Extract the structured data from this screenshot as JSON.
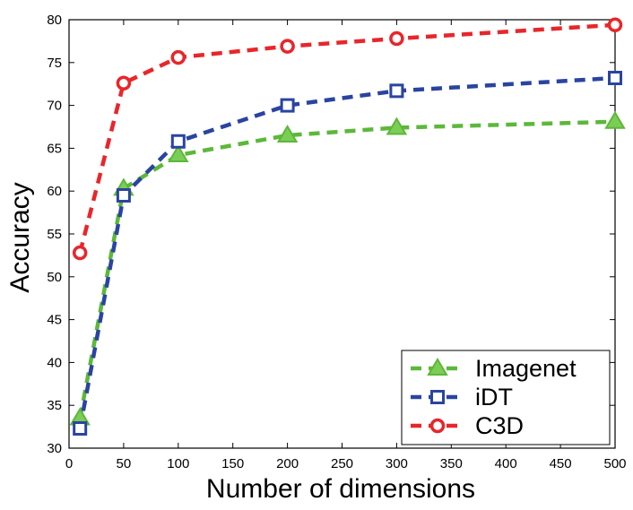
{
  "chart_data": {
    "type": "line",
    "xlabel": "Number of dimensions",
    "ylabel": "Accuracy",
    "xlim": [
      0,
      500
    ],
    "ylim": [
      30,
      80
    ],
    "xticks": [
      0,
      50,
      100,
      150,
      200,
      250,
      300,
      350,
      400,
      450,
      500
    ],
    "yticks": [
      30,
      35,
      40,
      45,
      50,
      55,
      60,
      65,
      70,
      75,
      80
    ],
    "grid": false,
    "legend_position": "bottom-right",
    "x": [
      10,
      50,
      100,
      200,
      300,
      500
    ],
    "series": [
      {
        "name": "Imagenet",
        "color": "#5cb83a",
        "marker": "triangle",
        "line_style": "dashed",
        "values": [
          33.5,
          60.3,
          64.2,
          66.5,
          67.4,
          68.1
        ]
      },
      {
        "name": "iDT",
        "color": "#2a44a0",
        "marker": "square",
        "line_style": "dashed",
        "values": [
          32.3,
          59.5,
          65.8,
          70.0,
          71.7,
          73.2
        ]
      },
      {
        "name": "C3D",
        "color": "#e8262b",
        "marker": "circle",
        "line_style": "dashed",
        "values": [
          52.8,
          72.6,
          75.6,
          76.9,
          77.8,
          79.4
        ]
      }
    ]
  }
}
